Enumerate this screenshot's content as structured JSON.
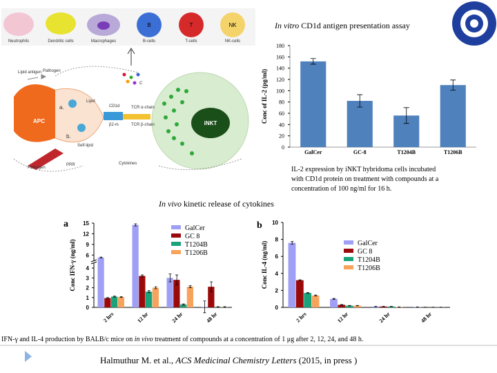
{
  "slide": {
    "assay_title": {
      "italic": "In vitro",
      "text": " CD1d antigen presentation assay"
    },
    "il2_caption": [
      "IL-2 expression by iNKT hybridoma cells incubated",
      "with CD1d protein on treatment with compounds at a",
      "concentration of 100 ng/ml for 16 h."
    ],
    "invivo_title": {
      "italic": "In vivo",
      "text": " kinetic release of cytokines"
    },
    "bottom_caption": [
      "IFN-γ and IL-4 production by BALB/c mice on ",
      "in vivo",
      " treatment of compounds at a concentration of 1 μg after 2, 12, 24, and 48 h."
    ],
    "citation": [
      "Halmuthur M. et al., ",
      "ACS Medicinal Chemistry Letters",
      " (2015, in press )"
    ]
  },
  "diagram": {
    "cells": [
      "Neutrophils",
      "Dendritic cells",
      "Macrophages",
      "B-cells",
      "T-cells",
      "NK-cells"
    ],
    "cell_letters": [
      "B",
      "T",
      "NK"
    ],
    "apc": "APC",
    "inkt": "iNKT",
    "lipid_antigen": "Lipid antigen",
    "pathogen": "Pathogen",
    "lipid": "Lipid",
    "cd1d": "CD1d",
    "tcr_a": "TCR α-chain",
    "tcr_b": "TCR β-chain",
    "b2m": "β2-m",
    "cytokines": "Cytokines",
    "self_lipid": "Self-lipid",
    "prr": "PRR",
    "a": "a.",
    "b": "b."
  },
  "chart_data": [
    {
      "type": "bar",
      "ylabel": "Conc of IL-2 (pg/ml)",
      "categories": [
        "GalCer",
        "GC-8",
        "T1204B",
        "T1206B"
      ],
      "values": [
        152,
        82,
        56,
        110
      ],
      "errors": [
        5,
        11,
        14,
        9
      ],
      "color": "#4f81bd",
      "ylim": [
        0,
        180
      ],
      "yticks": [
        0,
        20,
        40,
        60,
        80,
        100,
        120,
        140,
        160,
        180
      ]
    },
    {
      "type": "grouped-bar",
      "panel": "a",
      "ylabel": "Conc IFN-γ (ng/ml)",
      "categories": [
        "2 hrs",
        "12 hr",
        "24 hr",
        "48 hr"
      ],
      "ylim": [
        0,
        15
      ],
      "y_break": 4.5,
      "yticks": [
        0,
        1,
        2,
        3,
        4,
        6,
        9,
        12,
        15
      ],
      "legend": "top-right",
      "series": [
        {
          "name": "GalCer",
          "color": "#9f9ff5",
          "values": [
            5.3,
            14.5,
            3.0,
            0.05
          ],
          "errors": [
            0.15,
            0.3,
            0.4,
            0.6
          ]
        },
        {
          "name": "GC 8",
          "color": "#9b0a0a",
          "values": [
            0.95,
            3.2,
            2.8,
            2.1
          ],
          "errors": [
            0.05,
            0.1,
            0.5,
            0.5
          ]
        },
        {
          "name": "T1204B",
          "color": "#1aa37a",
          "values": [
            1.1,
            1.6,
            0.3,
            0.05
          ],
          "errors": [
            0.05,
            0.1,
            0.05,
            0.02
          ]
        },
        {
          "name": "T1206B",
          "color": "#f7a35c",
          "values": [
            1.05,
            2.0,
            2.1,
            0.05
          ],
          "errors": [
            0.05,
            0.1,
            0.1,
            0.02
          ]
        }
      ]
    },
    {
      "type": "grouped-bar",
      "panel": "b",
      "ylabel": "Conc IL-4 (ng/ml)",
      "categories": [
        "2 hrs",
        "12 hr",
        "24 hr",
        "48 hr"
      ],
      "ylim": [
        0,
        10
      ],
      "yticks": [
        0,
        2,
        4,
        6,
        8,
        10
      ],
      "legend": "top-right",
      "series": [
        {
          "name": "GalCer",
          "color": "#9f9ff5",
          "values": [
            7.6,
            1.0,
            0.1,
            0.05
          ],
          "errors": [
            0.15,
            0.05,
            0.02,
            0.01
          ]
        },
        {
          "name": "GC 8",
          "color": "#9b0a0a",
          "values": [
            3.2,
            0.3,
            0.1,
            0.02
          ],
          "errors": [
            0.05,
            0.03,
            0.02,
            0.01
          ]
        },
        {
          "name": "T1204B",
          "color": "#1aa37a",
          "values": [
            1.7,
            0.2,
            0.1,
            0.02
          ],
          "errors": [
            0.05,
            0.02,
            0.02,
            0.01
          ]
        },
        {
          "name": "T1206B",
          "color": "#f7a35c",
          "values": [
            1.4,
            0.2,
            0.05,
            0.02
          ],
          "errors": [
            0.05,
            0.02,
            0.01,
            0.01
          ]
        }
      ]
    }
  ]
}
